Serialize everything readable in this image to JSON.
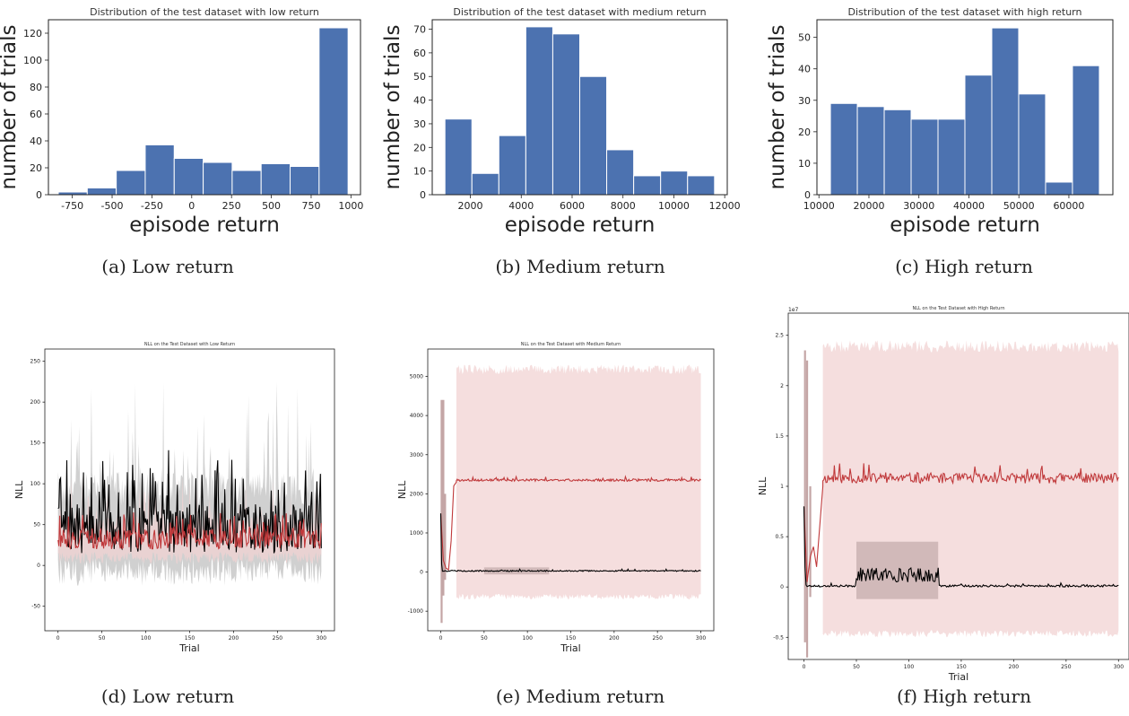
{
  "colors": {
    "bar": "#4c72b0",
    "red_line": "#c0393b",
    "red_band": "#f2d3d3",
    "black_line": "#000000",
    "gray_band": "#c8c8c8"
  },
  "chart_data": [
    {
      "type": "bar",
      "title": "Distribution of the test dataset with low return",
      "xlabel": "episode return",
      "ylabel": "number of trials",
      "caption": "(a) Low return",
      "bin_edges": [
        -838,
        -656,
        -474,
        -292,
        -110,
        72,
        254,
        436,
        618,
        800,
        982
      ],
      "values": [
        2,
        5,
        18,
        37,
        27,
        24,
        18,
        23,
        21,
        124
      ],
      "xticks": [
        -750,
        -500,
        -250,
        0,
        250,
        500,
        750,
        1000
      ],
      "yticks": [
        0,
        20,
        40,
        60,
        80,
        100,
        120
      ],
      "xlim": [
        -900,
        1060
      ],
      "ylim": [
        0,
        130
      ]
    },
    {
      "type": "bar",
      "title": "Distribution of the test dataset with medium return",
      "xlabel": "episode return",
      "ylabel": "number of trials",
      "caption": "(b) Medium return",
      "bin_edges": [
        1000,
        2060,
        3120,
        4180,
        5240,
        6300,
        7360,
        8420,
        9480,
        10540,
        11600
      ],
      "values": [
        32,
        9,
        25,
        71,
        68,
        50,
        19,
        8,
        10,
        8
      ],
      "xticks": [
        2000,
        4000,
        6000,
        8000,
        10000,
        12000
      ],
      "yticks": [
        0,
        10,
        20,
        30,
        40,
        50,
        60,
        70
      ],
      "xlim": [
        500,
        12100
      ],
      "ylim": [
        0,
        74
      ]
    },
    {
      "type": "bar",
      "title": "Distribution of the test dataset with high return",
      "xlabel": "episode return",
      "ylabel": "number of trials",
      "caption": "(c) High return",
      "bin_edges": [
        12300,
        17680,
        23060,
        28440,
        33820,
        39200,
        44580,
        49960,
        55340,
        60720,
        66100
      ],
      "values": [
        29,
        28,
        27,
        24,
        24,
        38,
        53,
        32,
        4,
        41
      ],
      "xticks": [
        10000,
        20000,
        30000,
        40000,
        50000,
        60000
      ],
      "yticks": [
        0,
        10,
        20,
        30,
        40,
        50
      ],
      "xlim": [
        9600,
        68800
      ],
      "ylim": [
        0,
        55.6
      ]
    },
    {
      "type": "line",
      "title": "NLL on the Test Dataset with Low Return",
      "xlabel": "Trial",
      "ylabel": "NLL",
      "caption": "(d) Low return",
      "xticks": [
        0,
        50,
        100,
        150,
        200,
        250,
        300
      ],
      "yticks": [
        -50,
        0,
        50,
        100,
        150,
        200,
        250
      ],
      "xlim": [
        -15,
        315
      ],
      "ylim": [
        -80,
        265
      ],
      "series": [
        {
          "color": "black",
          "level": 45,
          "noise": 30,
          "band": 70,
          "band_color": "gray",
          "seed": 7
        },
        {
          "color": "red",
          "level": 32,
          "noise": 12,
          "band": 30,
          "band_color": "red",
          "seed": 13
        }
      ]
    },
    {
      "type": "line",
      "title": "NLL on the Test Dataset with Medium Return",
      "xlabel": "Trial",
      "ylabel": "NLL",
      "caption": "(e) Medium return",
      "xticks": [
        0,
        50,
        100,
        150,
        200,
        250,
        300
      ],
      "yticks": [
        -1000,
        0,
        1000,
        2000,
        3000,
        4000,
        5000
      ],
      "xlim": [
        -15,
        315
      ],
      "ylim": [
        -1500,
        5700
      ],
      "series": [
        {
          "color": "red",
          "level": 2350,
          "noise": 30,
          "band_lo": -700,
          "band_hi": 5300,
          "start": 18,
          "seed": 3
        },
        {
          "color": "black",
          "level": 30,
          "noise": 15,
          "start": 3,
          "seed": 5
        }
      ]
    },
    {
      "type": "line",
      "title": "NLL on the Test Dataset with High Return",
      "xlabel": "Trial",
      "ylabel": "NLL",
      "scale_label": "1e7",
      "caption": "(f) High return",
      "xticks": [
        0,
        50,
        100,
        150,
        200,
        250,
        300
      ],
      "yticks": [
        -0.5,
        0.0,
        0.5,
        1.0,
        1.5,
        2.0,
        2.5
      ],
      "xlim": [
        -15,
        310
      ],
      "ylim": [
        -0.72,
        2.72
      ],
      "series": [
        {
          "color": "red",
          "level": 1.08,
          "noise": 0.05,
          "band_lo": -0.5,
          "band_hi": 2.45,
          "start": 18,
          "seed": 11
        },
        {
          "color": "black",
          "level": 0.01,
          "noise": 0.01,
          "bump_from": 50,
          "bump_to": 128,
          "bump_level": 0.16,
          "start": 3,
          "seed": 17
        }
      ]
    }
  ]
}
